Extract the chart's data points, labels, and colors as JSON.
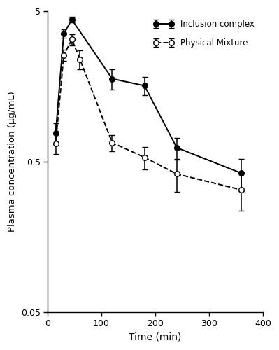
{
  "inclusion_complex_x": [
    15,
    30,
    45,
    120,
    180,
    240,
    360
  ],
  "inclusion_complex_y": [
    0.78,
    3.55,
    4.4,
    1.78,
    1.6,
    0.62,
    0.42
  ],
  "inclusion_complex_yerr": [
    0.12,
    0.22,
    0.18,
    0.28,
    0.22,
    0.1,
    0.1
  ],
  "physical_mixture_x": [
    15,
    30,
    45,
    60,
    120,
    180,
    240,
    360
  ],
  "physical_mixture_y": [
    0.66,
    2.55,
    3.25,
    2.4,
    0.67,
    0.535,
    0.415,
    0.325
  ],
  "physical_mixture_yerr": [
    0.1,
    0.22,
    0.28,
    0.35,
    0.08,
    0.09,
    0.1,
    0.09
  ],
  "xlabel": "Time (min)",
  "ylabel": "Plasma concentration (μg/mL)",
  "xlim": [
    0,
    400
  ],
  "ylim": [
    0.05,
    5
  ],
  "yticks": [
    0.05,
    0.5,
    5
  ],
  "ytick_labels": [
    "0.05",
    "0.5",
    "5"
  ],
  "xticks": [
    0,
    100,
    200,
    300,
    400
  ],
  "legend_inclusion": "Inclusion complex",
  "legend_physical": "Physical Mixture",
  "bg_color": "white"
}
